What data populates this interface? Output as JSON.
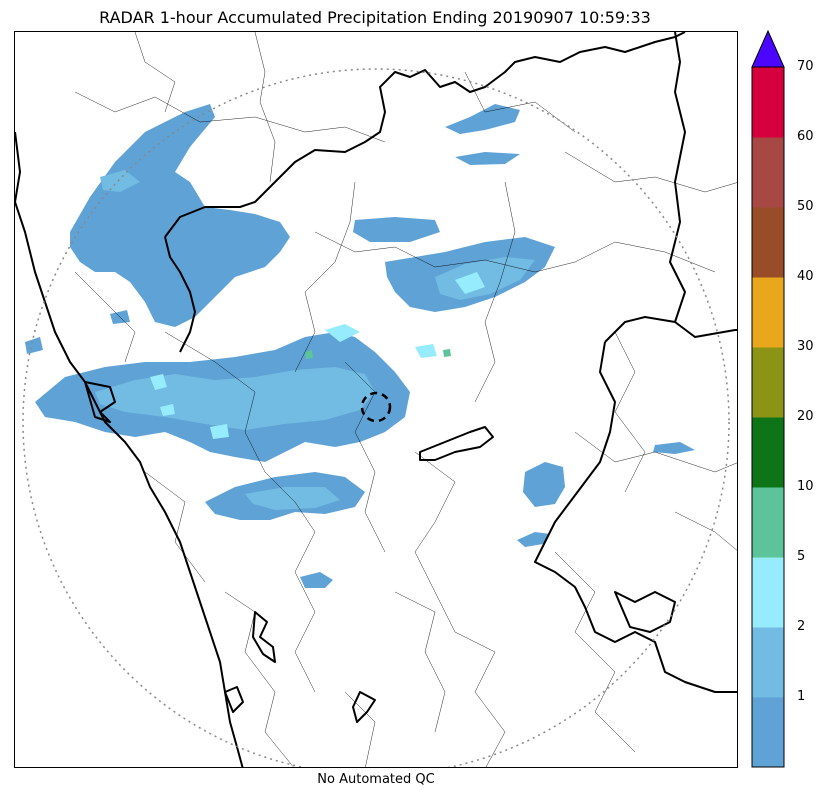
{
  "title": "RADAR 1-hour Accumulated Precipitation Ending 20190907 10:59:33",
  "footer": "No Automated QC",
  "colorbar": {
    "levels": [
      "1",
      "2",
      "5",
      "10",
      "20",
      "30",
      "40",
      "50",
      "60",
      "70"
    ],
    "colors": [
      "#5fa2d6",
      "#72bbe2",
      "#96ecfd",
      "#5cc39b",
      "#0e7418",
      "#8b9415",
      "#e9a81c",
      "#984d28",
      "#a84845",
      "#d5003d"
    ],
    "extend_color": "#4a06ff"
  },
  "map_colors": {
    "rain_light": "#5fa2d6",
    "rain_mid": "#72bbe2",
    "rain_heavy": "#96ecfd",
    "rain_peak": "#5cc39b",
    "range_ring": "#888888",
    "borders": "#000000"
  }
}
